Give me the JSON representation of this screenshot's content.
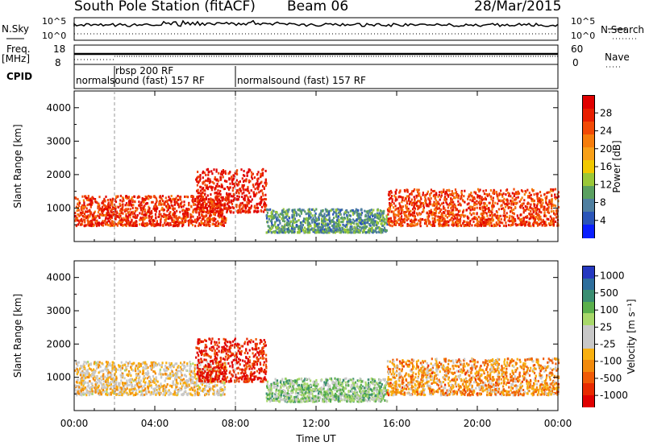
{
  "header": {
    "title": "South Pole Station (fitACF)",
    "beam": "Beam 06",
    "date": "28/Mar/2015"
  },
  "strip_labels": {
    "nsky": "N.Sky",
    "nsky_top": "10^5",
    "nsky_bot": "10^0",
    "freq_l1": "Freq.",
    "freq_l2": "[MHz]",
    "freq_top": "18",
    "freq_bot": "8",
    "cpid": "CPID",
    "nsearch": "N.Search",
    "nsearch_top": "10^5",
    "nsearch_bot": "10^0",
    "nave": "Nave",
    "nave_top": "60",
    "nave_bot": "0"
  },
  "cpid_segments": [
    {
      "start": "00:00",
      "label": "normalsound (fast) 157 RF"
    },
    {
      "start": "02:00",
      "label": "rbsp 200 RF"
    },
    {
      "start": "08:00",
      "label": "normalsound (fast) 157 RF"
    }
  ],
  "axes": {
    "ylabel": "Slant Range [km]",
    "xlabel": "Time UT",
    "x_ticks": [
      "00:00",
      "04:00",
      "08:00",
      "12:00",
      "16:00",
      "20:00",
      "00:00"
    ],
    "y_ticks": [
      "1000",
      "2000",
      "3000",
      "4000"
    ]
  },
  "power_colorbar": {
    "title": "Power [dB]",
    "ticks": [
      "4",
      "8",
      "12",
      "16",
      "20",
      "24",
      "28"
    ],
    "colors": [
      "#0a1fff",
      "#2b55b8",
      "#4f7fa0",
      "#5aa060",
      "#9ac838",
      "#f0c800",
      "#f8a018",
      "#f67d0c",
      "#f24a06",
      "#e81e00",
      "#e00000"
    ]
  },
  "velocity_colorbar": {
    "title": "Velocity [m s⁻¹]",
    "ticks": [
      "1000",
      "500",
      "100",
      "25",
      "-25",
      "-100",
      "-500",
      "-1000"
    ],
    "colors": [
      "#2538c0",
      "#2d6e9c",
      "#3a8e72",
      "#5ab04c",
      "#a8d86a",
      "#c8c8c8",
      "#c8c8c8",
      "#f8b010",
      "#f28a0c",
      "#f05a06",
      "#e82a00",
      "#e00000"
    ]
  },
  "chart_data": [
    {
      "type": "heatmap",
      "title": "South Pole Station (fitACF)",
      "subtitle": "Beam 06",
      "xlabel": "Time UT",
      "ylabel": "Slant Range [km]",
      "xlim": [
        "00:00",
        "24:00"
      ],
      "ylim": [
        0,
        4500
      ],
      "colorbar": {
        "label": "Power [dB]",
        "range": [
          0,
          30
        ]
      },
      "regions": [
        {
          "t_start": 0.0,
          "t_end": 7.5,
          "range_low": 500,
          "range_high": 1400,
          "value": 26
        },
        {
          "t_start": 6.0,
          "t_end": 9.5,
          "range_low": 900,
          "range_high": 2200,
          "value": 28
        },
        {
          "t_start": 9.5,
          "t_end": 15.5,
          "range_low": 300,
          "range_high": 1000,
          "value": 8
        },
        {
          "t_start": 15.5,
          "t_end": 24.0,
          "range_low": 500,
          "range_high": 1600,
          "value": 25
        }
      ]
    },
    {
      "type": "heatmap",
      "xlabel": "Time UT",
      "ylabel": "Slant Range [km]",
      "xlim": [
        "00:00",
        "24:00"
      ],
      "ylim": [
        0,
        4500
      ],
      "colorbar": {
        "label": "Velocity [m s⁻¹]",
        "range": [
          -1000,
          1000
        ]
      },
      "regions": [
        {
          "t_start": 0.0,
          "t_end": 7.5,
          "range_low": 500,
          "range_high": 1500,
          "value": -150
        },
        {
          "t_start": 6.0,
          "t_end": 9.5,
          "range_low": 900,
          "range_high": 2200,
          "value": -900
        },
        {
          "t_start": 9.5,
          "t_end": 15.5,
          "range_low": 300,
          "range_high": 1000,
          "value": 300
        },
        {
          "t_start": 15.5,
          "t_end": 24.0,
          "range_low": 500,
          "range_high": 1600,
          "value": -400
        }
      ]
    }
  ]
}
